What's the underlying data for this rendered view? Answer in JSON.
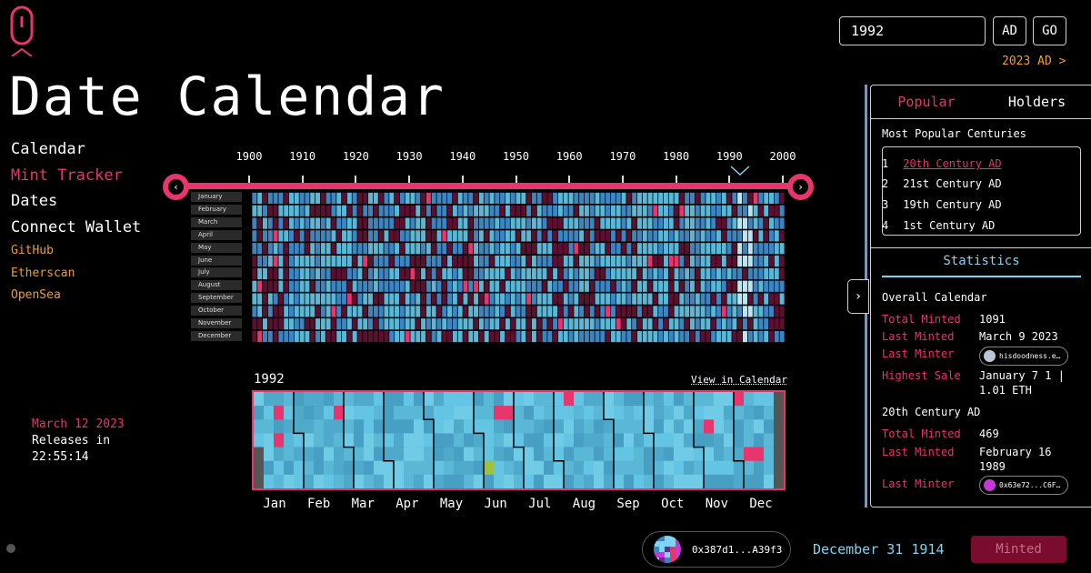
{
  "app": {
    "title": "Date Calendar"
  },
  "nav": {
    "primary": [
      "Calendar",
      "Mint Tracker",
      "Dates",
      "Connect Wallet"
    ],
    "active_index": 1,
    "links": [
      "GitHub",
      "Etherscan",
      "OpenSea"
    ]
  },
  "release": {
    "date": "March 12 2023",
    "label": "Releases in",
    "countdown": "22:55:14"
  },
  "search": {
    "year_value": "1992",
    "era_button": "AD",
    "go_button": "GO",
    "era_link": "2023 AD >"
  },
  "timeline": {
    "decades": [
      "1900",
      "1910",
      "1920",
      "1930",
      "1940",
      "1950",
      "1960",
      "1970",
      "1980",
      "1990",
      "2000"
    ],
    "selected_decade": "1990",
    "prev_icon": "‹",
    "next_icon": "›",
    "months": [
      "January",
      "February",
      "March",
      "April",
      "May",
      "June",
      "July",
      "August",
      "September",
      "October",
      "November",
      "December"
    ]
  },
  "year_view": {
    "year": "1992",
    "view_link": "View in Calendar",
    "months": [
      "Jan",
      "Feb",
      "Mar",
      "Apr",
      "May",
      "Jun",
      "Jul",
      "Aug",
      "Sep",
      "Oct",
      "Nov",
      "Dec"
    ]
  },
  "panel": {
    "tabs": [
      "Popular",
      "Holders"
    ],
    "active_tab": 0,
    "popular_heading": "Most Popular Centuries",
    "popular": [
      {
        "rank": "1",
        "name": "20th Century AD"
      },
      {
        "rank": "2",
        "name": "21st Century AD"
      },
      {
        "rank": "3",
        "name": "19th Century AD"
      },
      {
        "rank": "4",
        "name": "1st Century AD"
      }
    ],
    "stats_tab": "Statistics",
    "overall": {
      "heading": "Overall Calendar",
      "total_minted_label": "Total Minted",
      "total_minted": "1091",
      "last_minted_label": "Last Minted",
      "last_minted": "March 9 2023",
      "last_minter_label": "Last Minter",
      "last_minter": "hisdoodness.e…",
      "highest_sale_label": "Highest Sale",
      "highest_sale_line1": "January 7 1 |",
      "highest_sale_line2": "1.01 ETH"
    },
    "century": {
      "heading": "20th Century AD",
      "total_minted_label": "Total Minted",
      "total_minted": "469",
      "last_minted_label": "Last Minted",
      "last_minted_line1": "February 16",
      "last_minted_line2": "1989",
      "last_minter_label": "Last Minter",
      "last_minter": "0x63e72...C6F…"
    },
    "collapse_icon": "›"
  },
  "footer": {
    "wallet_address": "0x387d1...A39f3",
    "selected_date": "December 31 1914",
    "status_button": "Minted"
  },
  "colors": {
    "accent_pink": "#e8356d",
    "accent_orange": "#f59a2c",
    "accent_cyan": "#7fd4f2",
    "cell_blue": "#3d85c0",
    "cell_teal": "#5ab7d6",
    "cell_dark": "#5c1030"
  }
}
